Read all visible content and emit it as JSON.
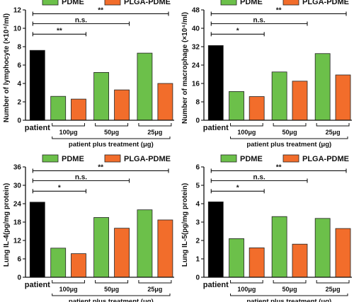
{
  "colors": {
    "patient": "#000000",
    "PDME": "#6cc04a",
    "PLGA-PDME": "#f26d2b"
  },
  "chart_data": [
    {
      "type": "bar",
      "ylabel": "Number of lymphocyte (×10⁴/ml)",
      "ylim": [
        0,
        12
      ],
      "yticks": [
        "0",
        "2",
        "4",
        "6",
        "8",
        "10",
        "12"
      ],
      "categories": [
        "patient",
        "100μg",
        "50μg",
        "25μg"
      ],
      "group_label": "patient plus treatment (μg)",
      "legend": [
        "PDME",
        "PLGA-PDME"
      ],
      "series": [
        {
          "name": "patient",
          "values": [
            7.6,
            null,
            null,
            null
          ]
        },
        {
          "name": "PDME",
          "values": [
            null,
            2.6,
            5.2,
            7.3
          ]
        },
        {
          "name": "PLGA-PDME",
          "values": [
            null,
            2.3,
            3.3,
            4.0
          ]
        }
      ],
      "significance": [
        "**",
        "n.s.",
        "**"
      ]
    },
    {
      "type": "bar",
      "ylabel": "Number of macrophage (×10⁴/ml)",
      "ylim": [
        0,
        48
      ],
      "yticks": [
        "0",
        "8",
        "16",
        "24",
        "32",
        "40",
        "48"
      ],
      "categories": [
        "patient",
        "100μg",
        "50μg",
        "25μg"
      ],
      "group_label": "patient plus treatment (μg)",
      "legend": [
        "PDME",
        "PLGA-PDME"
      ],
      "series": [
        {
          "name": "patient",
          "values": [
            32.5,
            null,
            null,
            null
          ]
        },
        {
          "name": "PDME",
          "values": [
            null,
            12.5,
            21.0,
            29.0
          ]
        },
        {
          "name": "PLGA-PDME",
          "values": [
            null,
            10.3,
            17.0,
            19.7
          ]
        }
      ],
      "significance": [
        "**",
        "n.s.",
        "*"
      ]
    },
    {
      "type": "bar",
      "ylabel": "Lung IL-4(pg/mg protein)",
      "ylim": [
        0,
        36
      ],
      "yticks": [
        "0",
        "6",
        "12",
        "18",
        "24",
        "30",
        "36"
      ],
      "categories": [
        "patient",
        "100μg",
        "50μg",
        "25μg"
      ],
      "group_label": "patient plus treatment (μg)",
      "legend": [
        "PDME",
        "PLGA-PDME"
      ],
      "series": [
        {
          "name": "patient",
          "values": [
            24.5,
            null,
            null,
            null
          ]
        },
        {
          "name": "PDME",
          "values": [
            null,
            9.5,
            19.5,
            22.0
          ]
        },
        {
          "name": "PLGA-PDME",
          "values": [
            null,
            7.7,
            16.0,
            18.7
          ]
        }
      ],
      "significance": [
        "**",
        "n.s.",
        "*"
      ]
    },
    {
      "type": "bar",
      "ylabel": "Lung IL-5(pg/mg protein)",
      "ylim": [
        0,
        6
      ],
      "yticks": [
        "0",
        "1",
        "2",
        "3",
        "4",
        "5",
        "6"
      ],
      "categories": [
        "patient",
        "100μg",
        "50μg",
        "25μg"
      ],
      "group_label": "patient plus treatment (μg)",
      "legend": [
        "PDME",
        "PLGA-PDME"
      ],
      "series": [
        {
          "name": "patient",
          "values": [
            4.1,
            null,
            null,
            null
          ]
        },
        {
          "name": "PDME",
          "values": [
            null,
            2.1,
            3.3,
            3.2
          ]
        },
        {
          "name": "PLGA-PDME",
          "values": [
            null,
            1.6,
            1.8,
            2.65
          ]
        }
      ],
      "significance": [
        "**",
        "n.s.",
        "*"
      ]
    }
  ]
}
